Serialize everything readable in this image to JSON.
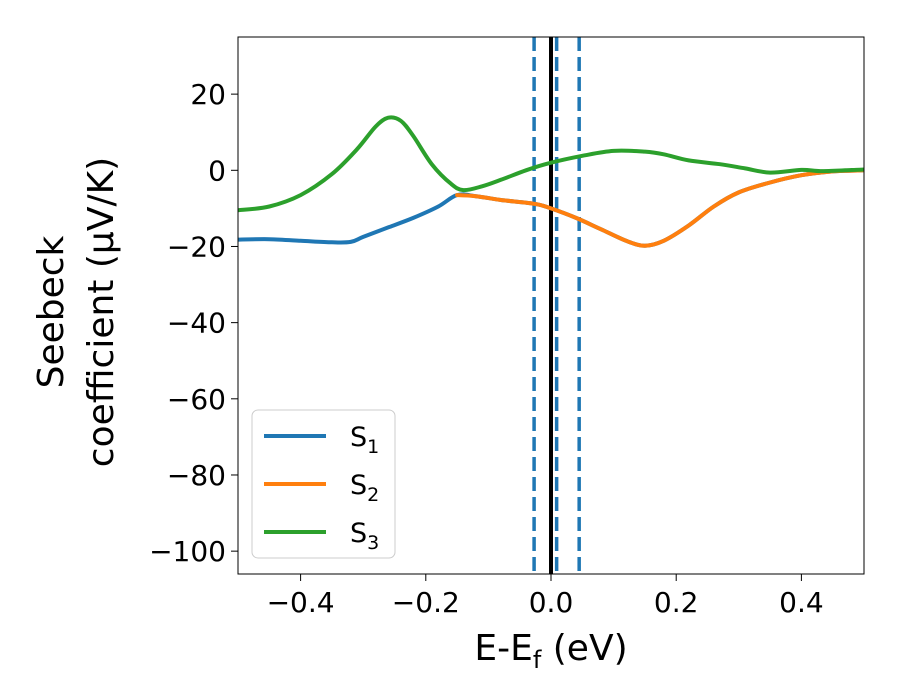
{
  "chart_data": {
    "type": "line",
    "xlabel": {
      "main": "E-E",
      "sub": "f",
      "tail": " (eV)"
    },
    "ylabel": {
      "line1": "Seebeck",
      "line2": "coefficient  (μV/K)"
    },
    "xlim": [
      -0.5,
      0.5
    ],
    "ylim": [
      -106,
      35
    ],
    "x_ticks": [
      -0.4,
      -0.2,
      0.0,
      0.2,
      0.4
    ],
    "x_tick_labels": [
      "−0.4",
      "−0.2",
      "0.0",
      "0.2",
      "0.4"
    ],
    "y_ticks": [
      -100,
      -80,
      -60,
      -40,
      -20,
      0,
      20
    ],
    "y_tick_labels": [
      "−100",
      "−80",
      "−60",
      "−40",
      "−20",
      "0",
      "20"
    ],
    "grid": false,
    "legend_position": "lower-left",
    "series": [
      {
        "name": {
          "main": "S",
          "sub": "1"
        },
        "color": "#1f77b4",
        "points": [
          [
            -0.5,
            -18.2
          ],
          [
            -0.45,
            -18.1
          ],
          [
            -0.4,
            -18.5
          ],
          [
            -0.35,
            -18.9
          ],
          [
            -0.32,
            -18.8
          ],
          [
            -0.3,
            -17.5
          ],
          [
            -0.26,
            -15
          ],
          [
            -0.22,
            -12.5
          ],
          [
            -0.18,
            -9.5
          ],
          [
            -0.15,
            -6.5
          ],
          [
            -0.12,
            -6.8
          ],
          [
            -0.08,
            -7.8
          ],
          [
            -0.04,
            -8.5
          ],
          [
            -0.02,
            -9
          ],
          [
            0.0,
            -10
          ],
          [
            0.04,
            -12.5
          ],
          [
            0.08,
            -15.5
          ],
          [
            0.12,
            -18.5
          ],
          [
            0.15,
            -19.8
          ],
          [
            0.18,
            -18.5
          ],
          [
            0.22,
            -14.5
          ],
          [
            0.26,
            -9.5
          ],
          [
            0.3,
            -5.8
          ],
          [
            0.35,
            -3.2
          ],
          [
            0.4,
            -1.3
          ],
          [
            0.45,
            -0.3
          ],
          [
            0.5,
            0
          ]
        ]
      },
      {
        "name": {
          "main": "S",
          "sub": "2"
        },
        "color": "#ff7f0e",
        "points": [
          [
            -0.15,
            -6.5
          ],
          [
            -0.12,
            -6.8
          ],
          [
            -0.08,
            -7.8
          ],
          [
            -0.04,
            -8.5
          ],
          [
            -0.02,
            -9
          ],
          [
            0.0,
            -10
          ],
          [
            0.04,
            -12.5
          ],
          [
            0.08,
            -15.5
          ],
          [
            0.12,
            -18.5
          ],
          [
            0.15,
            -19.8
          ],
          [
            0.18,
            -18.5
          ],
          [
            0.22,
            -14.5
          ],
          [
            0.26,
            -9.5
          ],
          [
            0.3,
            -5.8
          ],
          [
            0.35,
            -3.2
          ],
          [
            0.4,
            -1.3
          ],
          [
            0.45,
            -0.3
          ],
          [
            0.5,
            0
          ]
        ]
      },
      {
        "name": {
          "main": "S",
          "sub": "3"
        },
        "color": "#2ca02c",
        "points": [
          [
            -0.5,
            -10.5
          ],
          [
            -0.45,
            -9.5
          ],
          [
            -0.4,
            -6.5
          ],
          [
            -0.35,
            -1
          ],
          [
            -0.31,
            5.5
          ],
          [
            -0.28,
            11.5
          ],
          [
            -0.26,
            13.8
          ],
          [
            -0.24,
            13
          ],
          [
            -0.22,
            9
          ],
          [
            -0.19,
            1.5
          ],
          [
            -0.16,
            -3.5
          ],
          [
            -0.14,
            -5.2
          ],
          [
            -0.11,
            -4.2
          ],
          [
            -0.08,
            -2.5
          ],
          [
            -0.04,
            0
          ],
          [
            0.0,
            2
          ],
          [
            0.05,
            3.8
          ],
          [
            0.1,
            5.1
          ],
          [
            0.15,
            4.9
          ],
          [
            0.18,
            4.2
          ],
          [
            0.22,
            2.6
          ],
          [
            0.27,
            1.6
          ],
          [
            0.31,
            0.5
          ],
          [
            0.35,
            -0.6
          ],
          [
            0.4,
            0.1
          ],
          [
            0.43,
            -0.2
          ],
          [
            0.47,
            0
          ],
          [
            0.5,
            0.2
          ]
        ]
      }
    ],
    "vlines": [
      {
        "x": 0.0,
        "style": "solid",
        "color": "#000000"
      },
      {
        "x": -0.027,
        "style": "dashed",
        "color": "#1f77b4"
      },
      {
        "x": 0.009,
        "style": "dashed",
        "color": "#1f77b4"
      },
      {
        "x": 0.045,
        "style": "dashed",
        "color": "#1f77b4"
      }
    ]
  }
}
